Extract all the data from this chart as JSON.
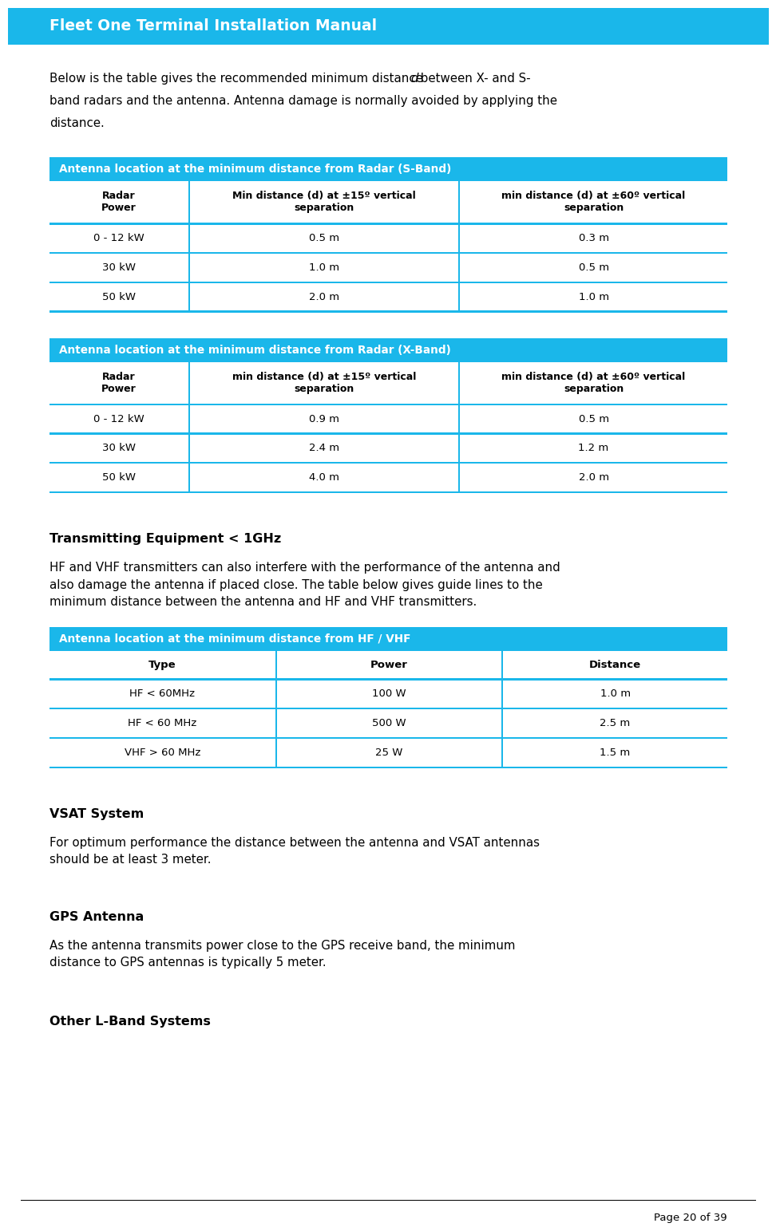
{
  "page_bg": "#ffffff",
  "header_bg": "#1ab7ea",
  "header_text": "Fleet One Terminal Installation Manual",
  "header_text_color": "#ffffff",
  "table_cyan": "#1ab7ea",
  "body_text_color": "#000000",
  "intro_text_parts": [
    {
      "text": "Below is the table gives the recommended minimum distance ",
      "style": "normal"
    },
    {
      "text": "d",
      "style": "italic"
    },
    {
      "text": " between X- and S-\nband radars and the antenna. Antenna damage is normally avoided by applying the\ndistance.",
      "style": "normal"
    }
  ],
  "sband_title": "Antenna location at the minimum distance from Radar (S-Band)",
  "sband_col1_header": "Radar\nPower",
  "sband_col2_header": "Min distance (d) at ±15º vertical\nseparation",
  "sband_col3_header": "min distance (d) at ±60º vertical\nseparation",
  "sband_rows": [
    [
      "0 - 12 kW",
      "0.5 m",
      "0.3 m"
    ],
    [
      "30 kW",
      "1.0 m",
      "0.5 m"
    ],
    [
      "50 kW",
      "2.0 m",
      "1.0 m"
    ]
  ],
  "xband_title": "Antenna location at the minimum distance from Radar (X-Band)",
  "xband_col1_header": "Radar\nPower",
  "xband_col2_header": "min distance (d) at ±15º vertical\nseparation",
  "xband_col3_header": "min distance (d) at ±60º vertical\nseparation",
  "xband_rows": [
    [
      "0 - 12 kW",
      "0.9 m",
      "0.5 m"
    ],
    [
      "30 kW",
      "2.4 m",
      "1.2 m"
    ],
    [
      "50 kW",
      "4.0 m",
      "2.0 m"
    ]
  ],
  "transmitting_heading": "Transmitting Equipment < 1GHz",
  "transmitting_body": "HF and VHF transmitters can also interfere with the performance of the antenna and\nalso damage the antenna if placed close. The table below gives guide lines to the\nminimum distance between the antenna and HF and VHF transmitters.",
  "hvf_title": "Antenna location at the minimum distance from HF / VHF",
  "hvf_col1_header": "Type",
  "hvf_col2_header": "Power",
  "hvf_col3_header": "Distance",
  "hvf_rows": [
    [
      "HF < 60MHz",
      "100 W",
      "1.0 m"
    ],
    [
      "HF < 60 MHz",
      "500 W",
      "2.5 m"
    ],
    [
      "VHF > 60 MHz",
      "25 W",
      "1.5 m"
    ]
  ],
  "vsat_heading": "VSAT System",
  "vsat_body": "For optimum performance the distance between the antenna and VSAT antennas\nshould be at least 3 meter.",
  "gps_heading": "GPS Antenna",
  "gps_body": "As the antenna transmits power close to the GPS receive band, the minimum\ndistance to GPS antennas is typically 5 meter.",
  "other_heading": "Other L-Band Systems",
  "footer_text": "Page 20 of 39"
}
